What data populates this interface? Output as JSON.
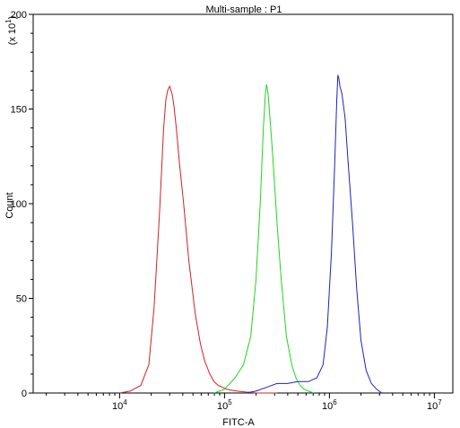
{
  "chart_data": {
    "type": "line",
    "title": "Multi-sample : P1",
    "xlabel": "FITC-A",
    "ylabel": "Count",
    "y_multiplier_label": "(x 10",
    "y_multiplier_exp": "1",
    "xscale": "log",
    "xlim": [
      1500,
      15000000
    ],
    "ylim": [
      0,
      200
    ],
    "x_ticks": [
      {
        "base": "10",
        "exp": "4",
        "value": 10000
      },
      {
        "base": "10",
        "exp": "5",
        "value": 100000
      },
      {
        "base": "10",
        "exp": "6",
        "value": 1000000
      },
      {
        "base": "10",
        "exp": "7",
        "value": 10000000
      }
    ],
    "y_ticks": [
      {
        "label": "0",
        "value": 0
      },
      {
        "label": "50",
        "value": 50
      },
      {
        "label": "100",
        "value": 100
      },
      {
        "label": "150",
        "value": 150
      },
      {
        "label": "200",
        "value": 200
      }
    ],
    "grid": false,
    "legend": "none",
    "series": [
      {
        "color": "#d42020",
        "x": [
          10000,
          12600,
          15900,
          19000,
          21300,
          24000,
          26300,
          27600,
          28800,
          30000,
          31600,
          32900,
          34700,
          37400,
          40800,
          45700,
          52500,
          58900,
          64600,
          72400,
          79400,
          87100,
          95500,
          104700,
          114800,
          131800,
          158500,
          199500,
          251200,
          316200
        ],
        "y": [
          0,
          1,
          4,
          15,
          45,
          95,
          140,
          155,
          160,
          162,
          158,
          152,
          140,
          120,
          100,
          70,
          42,
          26,
          17,
          10,
          6,
          4,
          3,
          2,
          1.5,
          1,
          0.5,
          0,
          0,
          0
        ]
      },
      {
        "color": "#20d420",
        "x": [
          79400,
          100000,
          125900,
          151400,
          178000,
          199500,
          218800,
          234400,
          245500,
          251200,
          257000,
          263000,
          275400,
          288400,
          316200,
          346700,
          389000,
          436500,
          478600,
          524800,
          575400,
          630900,
          707900
        ],
        "y": [
          0,
          2,
          8,
          15,
          30,
          60,
          100,
          140,
          158,
          163,
          160,
          155,
          140,
          125,
          90,
          60,
          30,
          15,
          8,
          4,
          2,
          1,
          0
        ]
      },
      {
        "color": "#2020c0",
        "x": [
          158500,
          199500,
          251200,
          316200,
          398100,
          501200,
          631000,
          758600,
          870000,
          954900,
          1047000,
          1122000,
          1174900,
          1202300,
          1230300,
          1258900,
          1318300,
          1412500,
          1513600,
          1659600,
          1819700,
          1995300,
          2238700,
          2511900,
          2818400,
          3162300
        ],
        "y": [
          0,
          1,
          3,
          5,
          5,
          6,
          6,
          8,
          15,
          35,
          75,
          120,
          155,
          168,
          166,
          162,
          158,
          145,
          120,
          90,
          55,
          28,
          12,
          5,
          2,
          0
        ]
      }
    ]
  }
}
